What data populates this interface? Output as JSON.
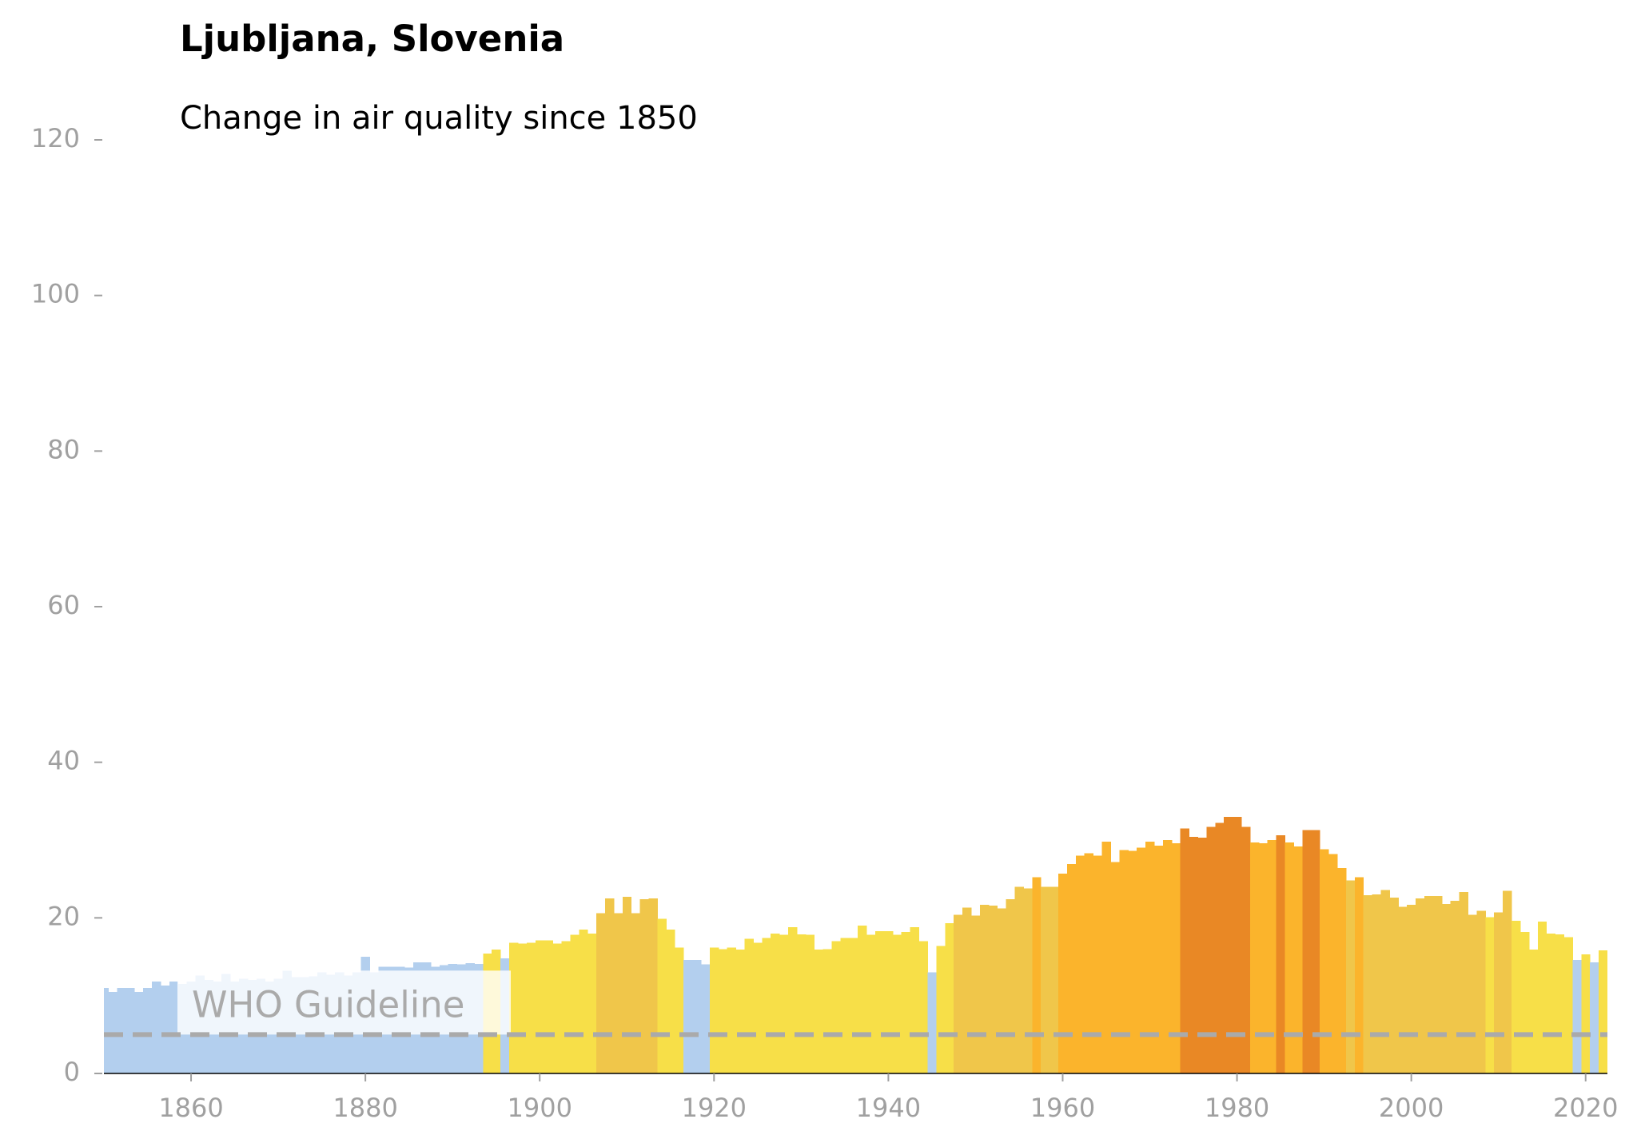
{
  "chart_data": {
    "type": "bar",
    "title": "Ljubljana, Slovenia",
    "subtitle": "Change in air quality since 1850",
    "x": [
      1850,
      1851,
      1852,
      1853,
      1854,
      1855,
      1856,
      1857,
      1858,
      1859,
      1860,
      1861,
      1862,
      1863,
      1864,
      1865,
      1866,
      1867,
      1868,
      1869,
      1870,
      1871,
      1872,
      1873,
      1874,
      1875,
      1876,
      1877,
      1878,
      1879,
      1880,
      1881,
      1882,
      1883,
      1884,
      1885,
      1886,
      1887,
      1888,
      1889,
      1890,
      1891,
      1892,
      1893,
      1894,
      1895,
      1896,
      1897,
      1898,
      1899,
      1900,
      1901,
      1902,
      1903,
      1904,
      1905,
      1906,
      1907,
      1908,
      1909,
      1910,
      1911,
      1912,
      1913,
      1914,
      1915,
      1916,
      1917,
      1918,
      1919,
      1920,
      1921,
      1922,
      1923,
      1924,
      1925,
      1926,
      1927,
      1928,
      1929,
      1930,
      1931,
      1932,
      1933,
      1934,
      1935,
      1936,
      1937,
      1938,
      1939,
      1940,
      1941,
      1942,
      1943,
      1944,
      1945,
      1946,
      1947,
      1948,
      1949,
      1950,
      1951,
      1952,
      1953,
      1954,
      1955,
      1956,
      1957,
      1958,
      1959,
      1960,
      1961,
      1962,
      1963,
      1964,
      1965,
      1966,
      1967,
      1968,
      1969,
      1970,
      1971,
      1972,
      1973,
      1974,
      1975,
      1976,
      1977,
      1978,
      1979,
      1980,
      1981,
      1982,
      1983,
      1984,
      1985,
      1986,
      1987,
      1988,
      1989,
      1990,
      1991,
      1992,
      1993,
      1994,
      1995,
      1996,
      1997,
      1998,
      1999,
      2000,
      2001,
      2002,
      2003,
      2004,
      2005,
      2006,
      2007,
      2008,
      2009,
      2010,
      2011,
      2012,
      2013,
      2014,
      2015,
      2016,
      2017,
      2018,
      2019,
      2020,
      2021,
      2022
    ],
    "values": [
      11,
      10.5,
      11,
      11,
      10.5,
      11,
      11.8,
      11.3,
      11.8,
      11.5,
      11.8,
      12.6,
      12,
      11.8,
      12.8,
      11.8,
      12.2,
      12,
      12.2,
      11.8,
      12.2,
      13.2,
      12.4,
      12.4,
      12.5,
      13,
      12.7,
      13,
      12.6,
      13,
      15,
      13,
      13.7,
      13.7,
      13.7,
      13.6,
      14.3,
      14.3,
      13.7,
      13.9,
      14.1,
      14,
      14.2,
      14.1,
      15.4,
      15.9,
      14.8,
      16.8,
      16.7,
      16.8,
      17.1,
      17.1,
      16.7,
      17,
      17.8,
      18.5,
      18,
      20.6,
      22.5,
      20.6,
      22.7,
      20.6,
      22.4,
      22.5,
      19.9,
      18.5,
      16.2,
      14.6,
      14.6,
      14,
      16.2,
      16,
      16.2,
      15.9,
      17.3,
      16.8,
      17.4,
      18,
      17.8,
      18.8,
      17.9,
      17.8,
      15.9,
      16,
      17,
      17.4,
      17.4,
      19,
      17.8,
      18.3,
      18.3,
      17.8,
      18.2,
      18.8,
      17,
      13,
      16.4,
      19.3,
      20.4,
      21.3,
      20.3,
      21.7,
      21.6,
      21.2,
      22.4,
      24,
      23.8,
      25.2,
      24,
      24,
      25.7,
      26.9,
      28,
      28.3,
      28,
      29.8,
      27.2,
      28.7,
      28.6,
      29,
      29.8,
      29.3,
      30,
      29.6,
      31.5,
      30.4,
      30.3,
      31.7,
      32.2,
      33,
      33,
      31.7,
      29.7,
      29.6,
      30,
      30.6,
      29.7,
      29.2,
      31.3,
      31.3,
      28.8,
      28.2,
      26.4,
      24.8,
      25.2,
      22.9,
      23,
      23.6,
      22.6,
      21.4,
      21.7,
      22.5,
      22.8,
      22.8,
      21.8,
      22.2,
      23.3,
      20.4,
      20.9,
      20.1,
      20.7,
      23.5,
      19.6,
      18.2,
      15.9,
      19.5,
      18,
      17.9,
      17.5,
      14.6,
      15.3,
      14.3,
      15.8
    ],
    "colors": [
      "#b3cfee",
      "#b3cfee",
      "#b3cfee",
      "#b3cfee",
      "#b3cfee",
      "#b3cfee",
      "#b3cfee",
      "#b3cfee",
      "#b3cfee",
      "#b3cfee",
      "#b3cfee",
      "#b3cfee",
      "#b3cfee",
      "#b3cfee",
      "#b3cfee",
      "#b3cfee",
      "#b3cfee",
      "#b3cfee",
      "#b3cfee",
      "#b3cfee",
      "#b3cfee",
      "#b3cfee",
      "#b3cfee",
      "#b3cfee",
      "#b3cfee",
      "#b3cfee",
      "#b3cfee",
      "#b3cfee",
      "#b3cfee",
      "#b3cfee",
      "#b3cfee",
      "#b3cfee",
      "#b3cfee",
      "#b3cfee",
      "#b3cfee",
      "#b3cfee",
      "#b3cfee",
      "#b3cfee",
      "#b3cfee",
      "#b3cfee",
      "#b3cfee",
      "#b3cfee",
      "#b3cfee",
      "#b3cfee",
      "#f7df48",
      "#f7df48",
      "#b3cfee",
      "#f7df48",
      "#f7df48",
      "#f7df48",
      "#f7df48",
      "#f7df48",
      "#f7df48",
      "#f7df48",
      "#f7df48",
      "#f7df48",
      "#f7df48",
      "#f0c64a",
      "#f0c64a",
      "#f0c64a",
      "#f0c64a",
      "#f0c64a",
      "#f0c64a",
      "#f0c64a",
      "#f7df48",
      "#f7df48",
      "#f7df48",
      "#b3cfee",
      "#b3cfee",
      "#b3cfee",
      "#f7df48",
      "#f7df48",
      "#f7df48",
      "#f7df48",
      "#f7df48",
      "#f7df48",
      "#f7df48",
      "#f7df48",
      "#f7df48",
      "#f7df48",
      "#f7df48",
      "#f7df48",
      "#f7df48",
      "#f7df48",
      "#f7df48",
      "#f7df48",
      "#f7df48",
      "#f7df48",
      "#f7df48",
      "#f7df48",
      "#f7df48",
      "#f7df48",
      "#f7df48",
      "#f7df48",
      "#f7df48",
      "#b3cfee",
      "#f7df48",
      "#f7df48",
      "#f0c64a",
      "#f0c64a",
      "#f0c64a",
      "#f0c64a",
      "#f0c64a",
      "#f0c64a",
      "#f0c64a",
      "#f0c64a",
      "#f0c64a",
      "#fbb42c",
      "#f0c64a",
      "#f0c64a",
      "#fbb42c",
      "#fbb42c",
      "#fbb42c",
      "#fbb42c",
      "#fbb42c",
      "#fbb42c",
      "#fbb42c",
      "#fbb42c",
      "#fbb42c",
      "#fbb42c",
      "#fbb42c",
      "#fbb42c",
      "#fbb42c",
      "#fbb42c",
      "#e98825",
      "#e98825",
      "#e98825",
      "#e98825",
      "#e98825",
      "#e98825",
      "#e98825",
      "#e98825",
      "#fbb42c",
      "#fbb42c",
      "#fbb42c",
      "#e98825",
      "#fbb42c",
      "#fbb42c",
      "#e98825",
      "#e98825",
      "#fbb42c",
      "#fbb42c",
      "#fbb42c",
      "#f0c64a",
      "#fbb42c",
      "#f0c64a",
      "#f0c64a",
      "#f0c64a",
      "#f0c64a",
      "#f0c64a",
      "#f0c64a",
      "#f0c64a",
      "#f0c64a",
      "#f0c64a",
      "#f0c64a",
      "#f0c64a",
      "#f0c64a",
      "#f0c64a",
      "#f0c64a",
      "#f7df48",
      "#f0c64a",
      "#f0c64a",
      "#f7df48",
      "#f7df48",
      "#f7df48",
      "#f7df48",
      "#f7df48",
      "#f7df48",
      "#f7df48",
      "#b3cfee",
      "#f7df48",
      "#b3cfee",
      "#f7df48"
    ],
    "guideline": {
      "value": 5,
      "label": "WHO Guideline",
      "color": "#aaaaaa"
    },
    "xlim": [
      1850,
      2022.5
    ],
    "xticks": [
      1860,
      1880,
      1900,
      1920,
      1940,
      1960,
      1980,
      2000,
      2020
    ],
    "ylim": [
      0,
      120
    ],
    "yticks": [
      0,
      20,
      40,
      60,
      80,
      100,
      120
    ]
  }
}
